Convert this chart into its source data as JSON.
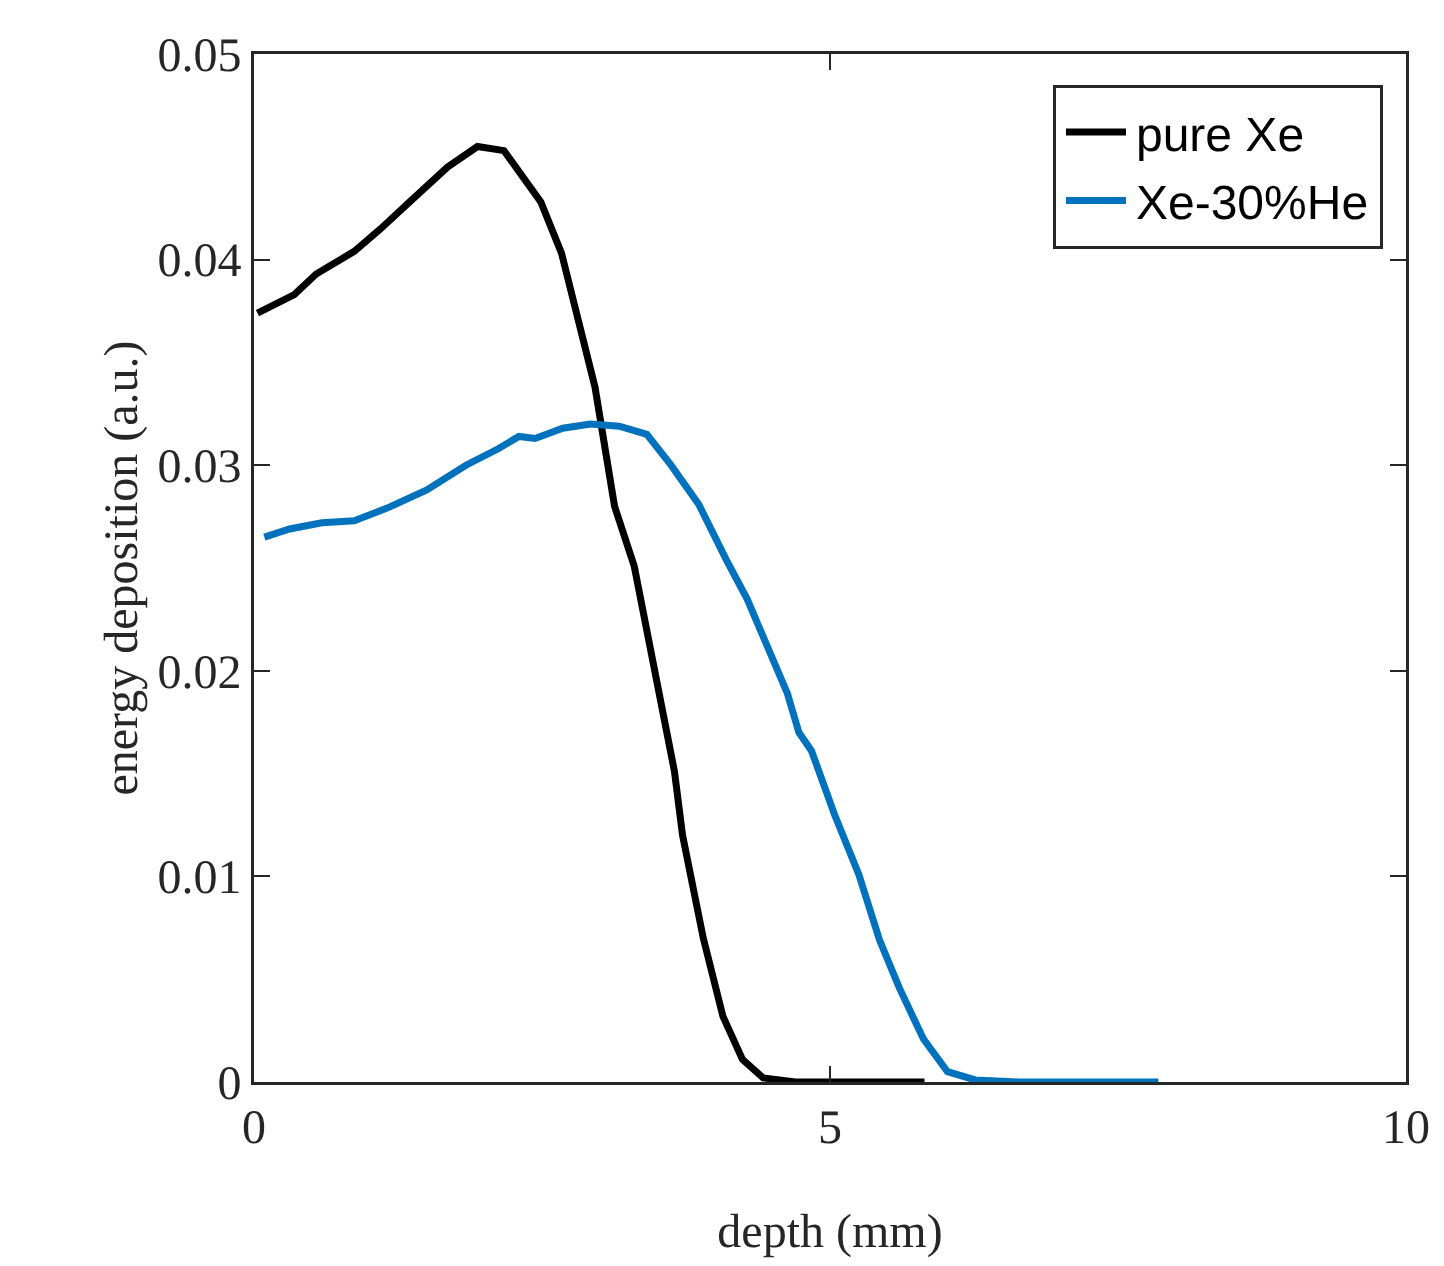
{
  "chart_data": {
    "type": "line",
    "xlabel": "depth (mm)",
    "ylabel": "energy deposition (a.u.)",
    "xlim": [
      0,
      10
    ],
    "xticks": [
      0,
      5,
      10
    ],
    "ylim": [
      0,
      0.05
    ],
    "yticks": [
      0,
      0.01,
      0.02,
      0.03,
      0.04,
      0.05
    ],
    "grid": false,
    "legend": "top right",
    "line_style": "solid",
    "marker": "none",
    "series": [
      {
        "name": "pure Xe",
        "color": "#000000",
        "x": [
          0.03,
          0.35,
          0.54,
          0.87,
          1.1,
          1.33,
          1.68,
          1.94,
          2.17,
          2.49,
          2.67,
          2.96,
          3.13,
          3.3,
          3.65,
          3.72,
          3.9,
          4.07,
          4.24,
          4.42,
          4.7,
          5.82
        ],
        "values": [
          0.0374,
          0.0383,
          0.0393,
          0.0404,
          0.0415,
          0.0427,
          0.0445,
          0.0455,
          0.0453,
          0.0428,
          0.0403,
          0.0338,
          0.028,
          0.0251,
          0.0151,
          0.012,
          0.007,
          0.0032,
          0.0011,
          0.0002,
          0,
          0
        ]
      },
      {
        "name": "Xe-30%He",
        "color": "#0072bd",
        "x": [
          0.09,
          0.31,
          0.59,
          0.87,
          1.15,
          1.5,
          1.84,
          2.12,
          2.3,
          2.44,
          2.68,
          2.92,
          3.17,
          3.41,
          3.62,
          3.86,
          4.1,
          4.28,
          4.63,
          4.73,
          4.84,
          5.04,
          5.25,
          5.43,
          5.6,
          5.81,
          6.02,
          6.26,
          6.64,
          7.85
        ],
        "values": [
          0.0265,
          0.0269,
          0.0272,
          0.0273,
          0.0279,
          0.0288,
          0.03,
          0.0308,
          0.0314,
          0.0313,
          0.0318,
          0.032,
          0.0319,
          0.0315,
          0.03,
          0.0281,
          0.0254,
          0.0235,
          0.0189,
          0.017,
          0.0161,
          0.013,
          0.0101,
          0.0069,
          0.0046,
          0.0021,
          0.0005,
          0.0001,
          0,
          0
        ]
      }
    ]
  }
}
